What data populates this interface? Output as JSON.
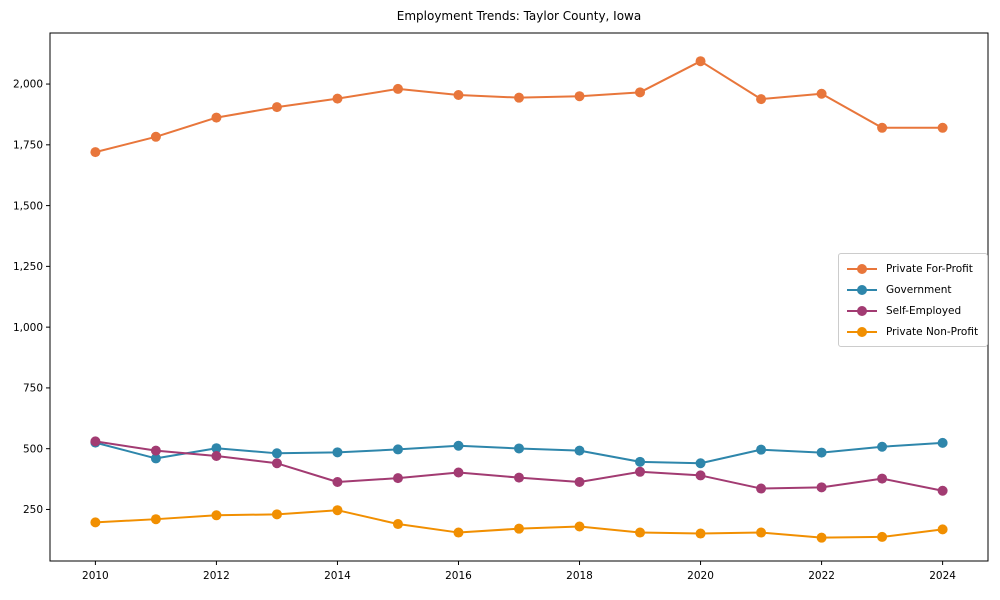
{
  "title": "Employment Trends: Taylor County, Iowa",
  "chart_data": {
    "type": "line",
    "title": "Employment Trends: Taylor County, Iowa",
    "xlabel": "",
    "ylabel": "",
    "x": [
      2010,
      2011,
      2012,
      2013,
      2014,
      2015,
      2016,
      2017,
      2018,
      2019,
      2020,
      2021,
      2022,
      2023,
      2024
    ],
    "series": [
      {
        "name": "Private For-Profit",
        "color": "#E8763B",
        "values": [
          1720,
          1783,
          1862,
          1905,
          1940,
          1980,
          1955,
          1944,
          1950,
          1966,
          2094,
          1938,
          1960,
          1820,
          1820
        ]
      },
      {
        "name": "Government",
        "color": "#2E86AB",
        "values": [
          525,
          460,
          502,
          481,
          485,
          497,
          512,
          501,
          492,
          446,
          440,
          496,
          484,
          508,
          524
        ]
      },
      {
        "name": "Self-Employed",
        "color": "#A23B72",
        "values": [
          530,
          492,
          470,
          440,
          363,
          379,
          402,
          381,
          363,
          405,
          390,
          336,
          341,
          377,
          327
        ]
      },
      {
        "name": "Private Non-Profit",
        "color": "#F18F01",
        "values": [
          197,
          210,
          226,
          230,
          247,
          190,
          155,
          171,
          180,
          155,
          151,
          155,
          134,
          137,
          168
        ]
      }
    ],
    "xticks": [
      2010,
      2012,
      2014,
      2016,
      2018,
      2020,
      2022,
      2024
    ],
    "xtick_labels": [
      "2010",
      "2012",
      "2014",
      "2016",
      "2018",
      "2020",
      "2022",
      "2024"
    ],
    "yticks": [
      250,
      500,
      750,
      1000,
      1250,
      1500,
      1750,
      2000
    ],
    "ytick_labels": [
      "250",
      "500",
      "750",
      "1,000",
      "1,250",
      "1,500",
      "1,750",
      "2,000"
    ],
    "xlim": [
      2009.25,
      2024.75
    ],
    "ylim": [
      38,
      2210
    ],
    "grid": false,
    "legend_position": "center right",
    "frame_color": "#000000"
  }
}
